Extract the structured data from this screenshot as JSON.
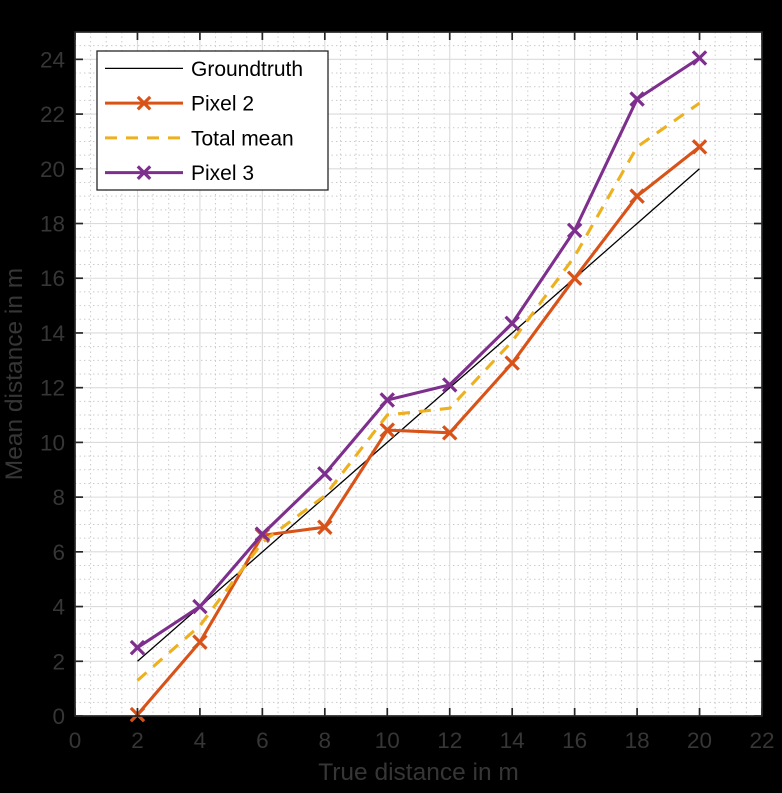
{
  "figure": {
    "background_color": "#000000",
    "plot_background_color": "#ffffff",
    "axis_color": "#262626",
    "label_color": "#363636",
    "major_grid_color": "#dbdbdb",
    "minor_grid_color": "#c8c8c8",
    "legend_background": "#ffffff",
    "legend_border_color": "#262626"
  },
  "chart_data": {
    "type": "line",
    "title": "",
    "xlabel": "True distance in m",
    "ylabel": "Mean distance in m",
    "xlim": [
      0,
      22
    ],
    "ylim": [
      0,
      25
    ],
    "xticks": [
      0,
      2,
      4,
      6,
      8,
      10,
      12,
      14,
      16,
      18,
      20,
      22
    ],
    "yticks": [
      0,
      2,
      4,
      6,
      8,
      10,
      12,
      14,
      16,
      18,
      20,
      22,
      24
    ],
    "grid": {
      "major": true,
      "minor": true,
      "minor_step": 0.5,
      "major_style": "solid",
      "minor_style": "dotted"
    },
    "legend": {
      "position": "top-left",
      "entries": [
        "Groundtruth",
        "Pixel 2",
        "Total mean",
        "Pixel 3"
      ]
    },
    "x": [
      2,
      4,
      6,
      8,
      10,
      12,
      14,
      16,
      18,
      20
    ],
    "series": [
      {
        "name": "Groundtruth",
        "color": "#000000",
        "line": "solid",
        "width": 1.3,
        "marker": "none",
        "x": [
          2,
          20
        ],
        "values": [
          2,
          20
        ]
      },
      {
        "name": "Pixel 2",
        "color": "#D95319",
        "line": "solid",
        "width": 3.1,
        "marker": "x",
        "x": [
          2,
          4,
          6,
          8,
          10,
          12,
          14,
          16,
          18,
          20
        ],
        "values": [
          0.05,
          2.7,
          6.6,
          6.9,
          10.45,
          10.35,
          12.9,
          16.0,
          19.0,
          20.8
        ]
      },
      {
        "name": "Total mean",
        "color": "#EDB120",
        "line": "dashed",
        "width": 3.1,
        "marker": "none",
        "x": [
          2,
          4,
          6,
          8,
          10,
          12,
          14,
          16,
          18,
          20
        ],
        "values": [
          1.3,
          3.3,
          6.35,
          8.05,
          11.0,
          11.25,
          13.7,
          16.8,
          20.8,
          22.4
        ]
      },
      {
        "name": "Pixel 3",
        "color": "#7E2F8E",
        "line": "solid",
        "width": 3.1,
        "marker": "x",
        "x": [
          2,
          4,
          6,
          8,
          10,
          12,
          14,
          16,
          18,
          20
        ],
        "values": [
          2.5,
          4.0,
          6.65,
          8.85,
          11.55,
          12.1,
          14.35,
          17.75,
          22.55,
          24.05
        ]
      }
    ]
  }
}
